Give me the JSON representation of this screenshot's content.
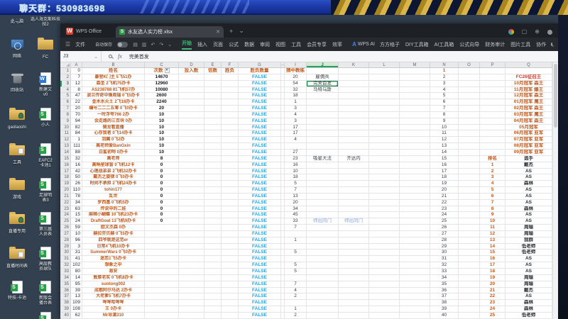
{
  "overlay": {
    "chat_label": "聊天群：530983698"
  },
  "desktop": {
    "col1": [
      {
        "label": [
          "此电脑"
        ],
        "type": "pc",
        "name": "this-pc"
      },
      {
        "label": [
          "网络"
        ],
        "type": "net",
        "name": "network"
      },
      {
        "label": [
          "回收站"
        ],
        "type": "bin",
        "name": "recycle-bin"
      },
      {
        "label": [
          "gaolaoshi"
        ],
        "type": "folder-user",
        "name": "folder-gaolaoshi"
      },
      {
        "label": [
          "工具"
        ],
        "type": "folder-doc",
        "name": "folder-tools"
      },
      {
        "label": [
          "游戏"
        ],
        "type": "folder",
        "name": "folder-games"
      },
      {
        "label": [
          "直播专用"
        ],
        "type": "folder-user",
        "name": "folder-stream"
      },
      {
        "label": [
          "直播时间表"
        ],
        "type": "folder-doc",
        "name": "folder-schedule"
      },
      {
        "label": [
          "特技-卡池"
        ],
        "type": "xls",
        "name": "file-stunt-pool"
      }
    ],
    "col2": [
      {
        "label": [
          "选人海克斯科技",
          "技2"
        ],
        "type": "none",
        "name": "file-hex-tech"
      },
      {
        "label": [
          "FC"
        ],
        "type": "folder",
        "name": "folder-fc"
      },
      {
        "label": [
          "新建文",
          "v0"
        ],
        "type": "wdoc",
        "name": "file-new-doc"
      },
      {
        "label": [
          "小人"
        ],
        "type": "xls",
        "name": "file-xiaoren"
      },
      {
        "label": [
          "EAFC2",
          "卡池1"
        ],
        "type": "xls",
        "name": "file-eafc-pool"
      },
      {
        "label": [
          "足球明",
          "表3"
        ],
        "type": "xls",
        "name": "file-football-star"
      },
      {
        "label": [
          "第三届",
          "人员表"
        ],
        "type": "xls",
        "name": "file-third-roster"
      },
      {
        "label": [
          "高层教",
          "员球队"
        ],
        "type": "xls",
        "name": "file-coach-teams"
      },
      {
        "label": [
          "新版会",
          "播台表"
        ],
        "type": "xls",
        "name": "file-broadcast-table"
      },
      {
        "label": [],
        "type": "xls",
        "name": "file-bottom-cut"
      }
    ]
  },
  "window": {
    "app_name": "WPS Office",
    "logo_letter": "W",
    "tab_title": "水友选人实力榜.xlsx",
    "tab_close": "✕",
    "tab_new": "+",
    "tab_list": "⌄",
    "menubar": {
      "hamburger": "☰",
      "file": "文件",
      "autosave": "自动保存",
      "quick_icons": [
        "save",
        "print",
        "undo",
        "redo",
        "more"
      ],
      "tabs": [
        "开始",
        "插入",
        "页面",
        "公式",
        "数据",
        "审阅",
        "视图",
        "工具",
        "会员专享",
        "效率"
      ],
      "active_tab": "开始",
      "ai_label": "WPS AI",
      "plugins": [
        "方方格子",
        "DIY工具箱",
        "AI工具箱",
        "公式向导",
        "财务审计",
        "图片工具",
        "协作"
      ]
    },
    "formula_bar": {
      "cell_ref": "J3",
      "dropdown": "⌄",
      "fx": "fx",
      "value": "完美首发"
    }
  },
  "sheet": {
    "col_letters": [
      "A",
      "B",
      "C",
      "D",
      "E",
      "F",
      "G",
      "··",
      "I",
      "J",
      "K",
      "L",
      "M",
      "N",
      "O",
      "P",
      "Q"
    ],
    "selected": {
      "ref": "J3",
      "row": 3,
      "col": "j"
    },
    "rows": [
      {
        "n": 1,
        "a": "0",
        "b": "姓名",
        "c": "次数",
        "d": "投入数",
        "e": "信数",
        "f": "胜负",
        "g": "胜负数量",
        "i": "猜中教练",
        "hdr": true
      },
      {
        "n": 2,
        "a": "7",
        "b": "暴登K门主 5飞51办",
        "c": "14670",
        "g": "FALSE",
        "i": "20",
        "j": "雇佣兵",
        "q": "FC26征召王",
        "qs": "red"
      },
      {
        "n": 3,
        "a": "12",
        "b": "森圣 2飞机75办卡",
        "c": "12960",
        "g": "FALSE",
        "i": "54",
        "j": "完美首发",
        "q": "10月冠军 森王",
        "qs": "org"
      },
      {
        "n": 4,
        "a": "8",
        "b": "AS238788 81飞机57办",
        "c": "10080",
        "g": "FALSE",
        "i": "32",
        "j": "马特乌斯",
        "q": "11月冠军 爆王",
        "qs": "org"
      },
      {
        "n": 5,
        "a": "47",
        "b": "波兰传奇中锋周瑞 0飞5办卡",
        "c": "2600",
        "g": "FALSE",
        "i": "18",
        "q": "12月冠军 森王",
        "qs": "org"
      },
      {
        "n": 6,
        "a": "22",
        "b": "金木水火土 2飞18办卡",
        "c": "2240",
        "g": "FALSE",
        "i": "1",
        "q": "01月冠军 鹰王",
        "qs": "org"
      },
      {
        "n": 7,
        "a": "20",
        "b": "编号二二二五零 0飞0办卡",
        "c": "20",
        "g": "FALSE",
        "i": "3",
        "q": "02月冠军 森王",
        "qs": "org"
      },
      {
        "n": 8,
        "a": "70",
        "b": "一时浮夸766 2办",
        "c": "10",
        "g": "FALSE",
        "i": "4",
        "q": "03月冠军 鹰王",
        "qs": "org"
      },
      {
        "n": 9,
        "a": "94",
        "b": "会走路的三百块 0办",
        "c": "10",
        "g": "FALSE",
        "i": "3",
        "q": "04月冠军 森王",
        "qs": "org"
      },
      {
        "n": 10,
        "a": "82",
        "b": "骑龙看直播",
        "c": "10",
        "g": "FALSE",
        "i": "17",
        "q": "05月冠军",
        "qs": "org"
      },
      {
        "n": 11,
        "a": "84",
        "b": "心存我者 0飞14办卡",
        "c": "10",
        "g": "FALSE",
        "i": "17",
        "q": "06月冠军 亚军",
        "qs": "org"
      },
      {
        "n": 12,
        "a": "1",
        "b": "羽翼 0飞2办",
        "c": "10",
        "g": "FALSE",
        "i": "4",
        "q": "07月冠军 亚军",
        "qs": "org"
      },
      {
        "n": 13,
        "a": "111",
        "b": "高老师爱BanGxin",
        "c": "10",
        "g": "FALSE",
        "q": "08月冠军 亚军",
        "qs": "org"
      },
      {
        "n": 14,
        "a": "88",
        "b": "白鲨初吻 0办卡",
        "c": "10",
        "g": "FALSE",
        "i": "27",
        "q": "09月冠军 亚军",
        "qs": "org"
      },
      {
        "n": 15,
        "a": "32",
        "b": "高老师",
        "c": "8",
        "g": "FALSE",
        "i": "23",
        "j": "吸星大法",
        "k": "齐达内",
        "p": "排名",
        "q": "选手",
        "qs": "dark"
      },
      {
        "n": 16,
        "a": "16",
        "b": "高晌星球盲 0飞机12卡",
        "c": "0",
        "g": "FALSE",
        "i": "16",
        "p": "1",
        "q": "戴杰",
        "qs": "dark"
      },
      {
        "n": 17,
        "a": "42",
        "b": "心理战弟弟 2飞机32办卡",
        "c": "0",
        "g": "FALSE",
        "i": "10",
        "p": "2",
        "q": "AS",
        "qs": "dark"
      },
      {
        "n": 18,
        "a": "50",
        "b": "戴杰之旋律 0飞0办卡",
        "c": "0",
        "g": "FALSE",
        "i": "18",
        "p": "3",
        "q": "AS",
        "qs": "dark"
      },
      {
        "n": 19,
        "a": "26",
        "b": "时间不承担 2飞机24办卡",
        "c": "0",
        "g": "FALSE",
        "i": "5",
        "p": "4",
        "q": "森林",
        "qs": "dark"
      },
      {
        "n": 20,
        "a": "110",
        "b": "tohin177",
        "c": "0",
        "g": "FALSE",
        "i": "7",
        "p": "5",
        "q": "AS",
        "qs": "dark"
      },
      {
        "n": 21,
        "a": "78",
        "b": "乱世",
        "c": "0",
        "g": "FALSE",
        "i": "13",
        "p": "6",
        "q": "AS",
        "qs": "dark"
      },
      {
        "n": 22,
        "a": "34",
        "b": "罗西基 0飞机5办",
        "c": "0",
        "g": "FALSE",
        "i": "20",
        "p": "7",
        "q": "AS",
        "qs": "dark"
      },
      {
        "n": 23,
        "a": "63",
        "b": "传说中的二娃",
        "c": "0",
        "g": "FALSE",
        "i": "34",
        "p": "8",
        "q": "森林",
        "qs": "dark"
      },
      {
        "n": 24,
        "a": "15",
        "b": "麻辣小蝴蝶 10飞机23办卡",
        "c": "0",
        "g": "FALSE",
        "i": "45",
        "p": "9",
        "q": "AS",
        "qs": "dark"
      },
      {
        "n": 25,
        "a": "24",
        "b": "DraftGoat 13飞机9办卡",
        "c": "0",
        "g": "FALSE",
        "i": "33",
        "j": "师出同门",
        "k": "师出同门",
        "jks": "blue",
        "p": "10",
        "q": "AS",
        "qs": "dark"
      },
      {
        "n": 26,
        "a": "59",
        "b": "欧文杰森 0办",
        "g": "FALSE",
        "i": "7",
        "p": "11",
        "q": "周瑜",
        "qs": "dark"
      },
      {
        "n": 27,
        "a": "10",
        "b": "赫拉芬贝赫 0飞5办卡",
        "g": "FALSE",
        "p": "12",
        "q": "周瑜",
        "qs": "dark"
      },
      {
        "n": 28,
        "a": "96",
        "b": "四爷就是这范er",
        "g": "FALSE",
        "i": "1",
        "p": "13",
        "q": "我群",
        "qs": "dark"
      },
      {
        "n": 29,
        "a": "3",
        "b": "日常4飞机10办卡",
        "g": "FALSE",
        "p": "14",
        "q": "低老师",
        "qs": "dark"
      },
      {
        "n": 30,
        "a": "31",
        "b": "SummerWars 0飞0办卡",
        "g": "FALSE",
        "i": "5",
        "p": "15",
        "q": "低老师",
        "qs": "dark"
      },
      {
        "n": 31,
        "a": "41",
        "b": "迷恋1飞5办卡",
        "g": "FALSE",
        "p": "16",
        "q": "AS",
        "qs": "dark"
      },
      {
        "n": 32,
        "a": "102",
        "b": "想象之中",
        "g": "FALSE",
        "i": "5",
        "p": "17",
        "q": "AS",
        "qs": "dark"
      },
      {
        "n": 33,
        "a": "80",
        "b": "易安",
        "g": "FALSE",
        "i": "5",
        "p": "18",
        "q": "AS",
        "qs": "dark"
      },
      {
        "n": 34,
        "a": "14",
        "b": "敦厚老实 0飞机8办卡",
        "g": "FALSE",
        "p": "19",
        "q": "周瑜",
        "qs": "dark"
      },
      {
        "n": 35,
        "a": "95",
        "b": "suntong002",
        "g": "FALSE",
        "i": "7",
        "p": "20",
        "q": "周瑜",
        "qs": "dark"
      },
      {
        "n": 36,
        "a": "39",
        "b": "成都阿尔马达 2办卡",
        "g": "FALSE",
        "i": "4",
        "p": "21",
        "q": "戴杰",
        "qs": "dark"
      },
      {
        "n": 37,
        "a": "13",
        "b": "大老爹5飞机7办卡",
        "g": "FALSE",
        "i": "2",
        "p": "22",
        "q": "AS",
        "qs": "dark"
      },
      {
        "n": 38,
        "a": "109",
        "b": "哞哞哈哞哞",
        "g": "FALSE",
        "p": "23",
        "q": "森林",
        "qs": "dark"
      },
      {
        "n": 39,
        "a": "108",
        "b": "王 0办卡",
        "g": "FALSE",
        "i": "1",
        "p": "24",
        "q": "森林",
        "qs": "dark"
      },
      {
        "n": 40,
        "a": "62",
        "b": "Mr导演310",
        "g": "FALSE",
        "i": "2",
        "p": "25",
        "q": "低老师",
        "qs": "dark"
      }
    ]
  },
  "colors": {
    "accent_green": "#21a366",
    "name_orange": "#bf5a1d",
    "false_blue": "#2aa2de",
    "q_red": "#d23a28",
    "overlay_blue": "#1b38a2",
    "overlay_gold": "#d9b54a"
  }
}
